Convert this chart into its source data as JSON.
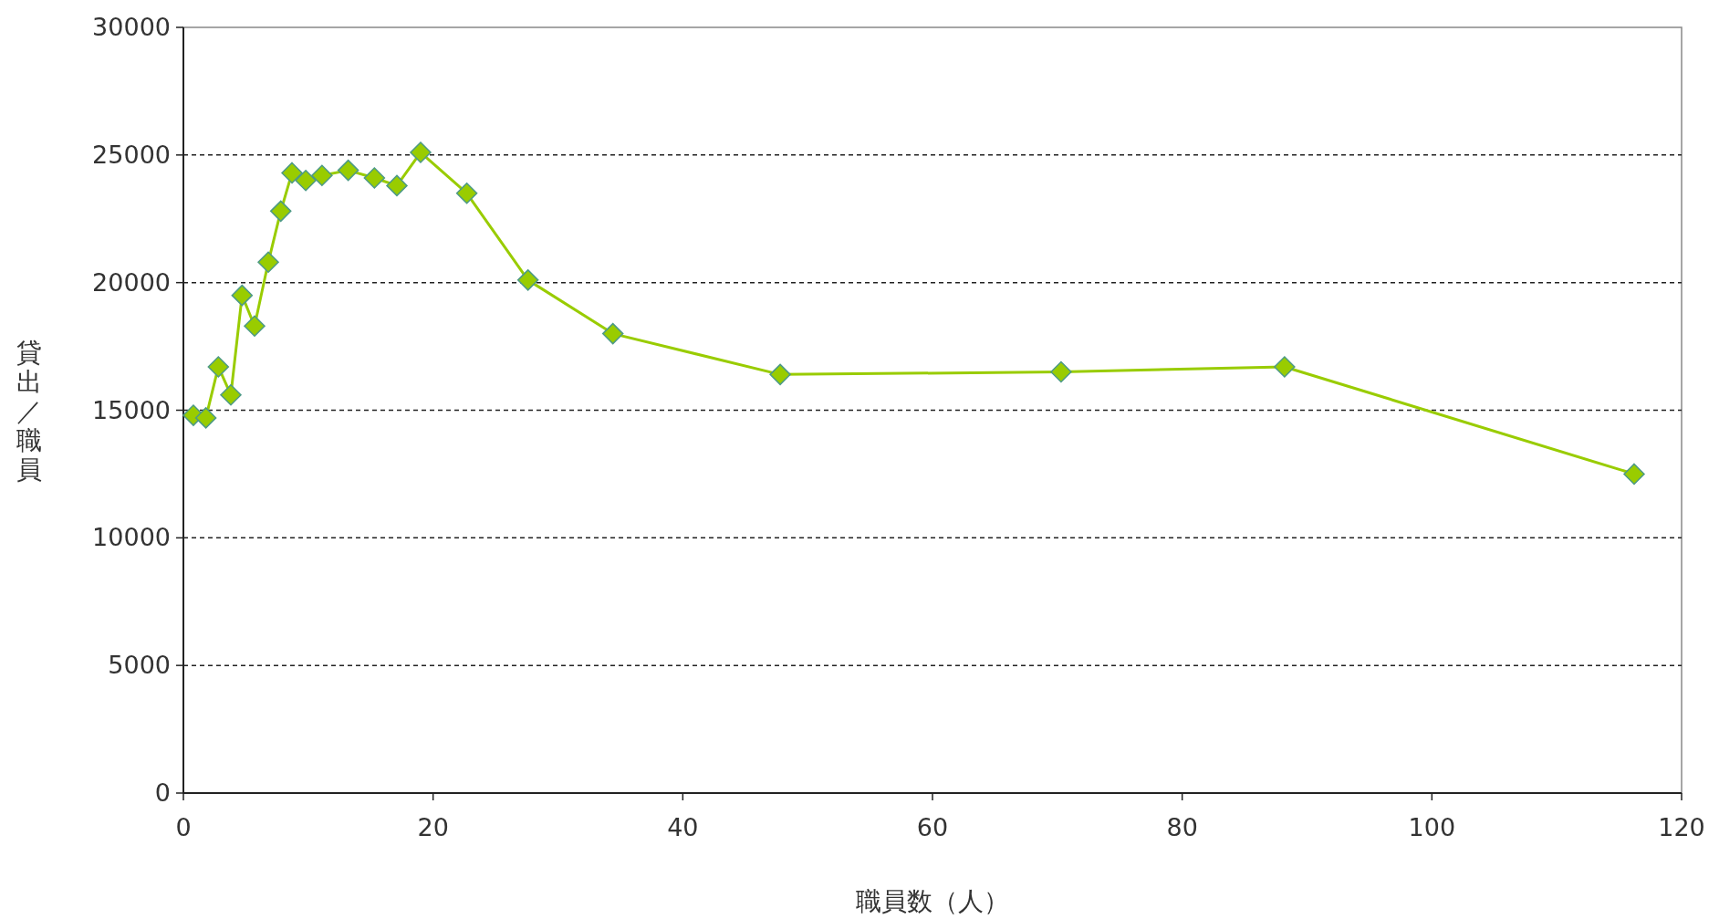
{
  "chart_data": {
    "type": "line",
    "xlabel": "職員数（人）",
    "ylabel": "貸出／職員",
    "series": [
      {
        "color": "#99cc00",
        "x": [
          0.8,
          1.8,
          2.8,
          3.8,
          4.7,
          5.7,
          6.8,
          7.8,
          8.7,
          9.8,
          11.1,
          13.2,
          15.3,
          17.1,
          19.0,
          22.7,
          27.6,
          34.4,
          47.8,
          70.3,
          88.2,
          116.2
        ],
        "values": [
          14800,
          14700,
          16700,
          15600,
          19500,
          18300,
          20800,
          22800,
          24300,
          24000,
          24200,
          24400,
          24100,
          23800,
          25100,
          23500,
          20100,
          18000,
          16400,
          16500,
          16700,
          12500
        ]
      }
    ],
    "xlim": [
      0,
      120
    ],
    "xticks": [
      0,
      20,
      40,
      60,
      80,
      100,
      120
    ],
    "ylim": [
      0,
      30000
    ],
    "yticks": [
      0,
      5000,
      10000,
      15000,
      20000,
      25000,
      30000
    ],
    "grid": "y",
    "marker": "diamond",
    "line_style": "solid"
  }
}
